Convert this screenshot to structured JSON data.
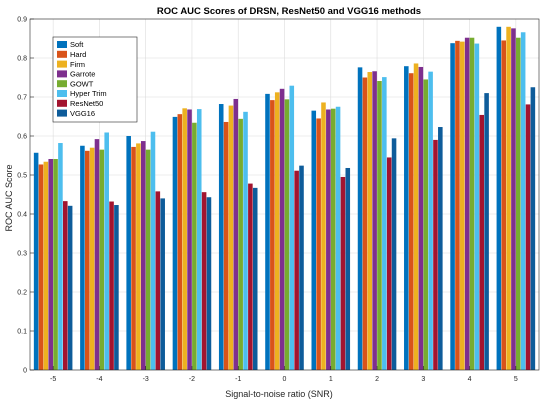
{
  "chart_data": {
    "type": "bar",
    "title": "ROC AUC Scores of DRSN, ResNet50 and VGG16 methods",
    "xlabel": "Signal-to-noise ratio (SNR)",
    "ylabel": "ROC AUC Score",
    "ylim": [
      0,
      0.9
    ],
    "yticks": [
      "0",
      "0.1",
      "0.2",
      "0.3",
      "0.4",
      "0.5",
      "0.6",
      "0.7",
      "0.8",
      "0.9"
    ],
    "categories": [
      "-5",
      "-4",
      "-3",
      "-2",
      "-1",
      "0",
      "1",
      "2",
      "3",
      "4",
      "5"
    ],
    "grid": true,
    "legend_position": "top-left",
    "series": [
      {
        "name": "Soft",
        "color": "#0072bd",
        "values": [
          0.557,
          0.575,
          0.6,
          0.649,
          0.682,
          0.708,
          0.665,
          0.776,
          0.779,
          0.838,
          0.88
        ]
      },
      {
        "name": "Hard",
        "color": "#d95319",
        "values": [
          0.527,
          0.562,
          0.572,
          0.656,
          0.636,
          0.692,
          0.645,
          0.75,
          0.761,
          0.844,
          0.845
        ]
      },
      {
        "name": "Firm",
        "color": "#edb120",
        "values": [
          0.534,
          0.57,
          0.581,
          0.671,
          0.678,
          0.712,
          0.686,
          0.764,
          0.786,
          0.842,
          0.88
        ]
      },
      {
        "name": "Garrote",
        "color": "#7e2f8e",
        "values": [
          0.541,
          0.592,
          0.587,
          0.668,
          0.695,
          0.721,
          0.668,
          0.766,
          0.777,
          0.852,
          0.876
        ]
      },
      {
        "name": "GOWT",
        "color": "#77ac30",
        "values": [
          0.541,
          0.565,
          0.565,
          0.634,
          0.644,
          0.694,
          0.67,
          0.741,
          0.745,
          0.852,
          0.852
        ]
      },
      {
        "name": "Hyper Trim",
        "color": "#4dbeee",
        "values": [
          0.582,
          0.609,
          0.611,
          0.669,
          0.662,
          0.729,
          0.675,
          0.751,
          0.765,
          0.837,
          0.866
        ]
      },
      {
        "name": "ResNet50",
        "color": "#a2142f",
        "values": [
          0.433,
          0.432,
          0.458,
          0.456,
          0.478,
          0.511,
          0.495,
          0.545,
          0.59,
          0.654,
          0.681
        ]
      },
      {
        "name": "VGG16",
        "color": "#0e5c9a",
        "values": [
          0.421,
          0.423,
          0.44,
          0.443,
          0.467,
          0.524,
          0.518,
          0.594,
          0.623,
          0.71,
          0.725
        ]
      }
    ]
  }
}
